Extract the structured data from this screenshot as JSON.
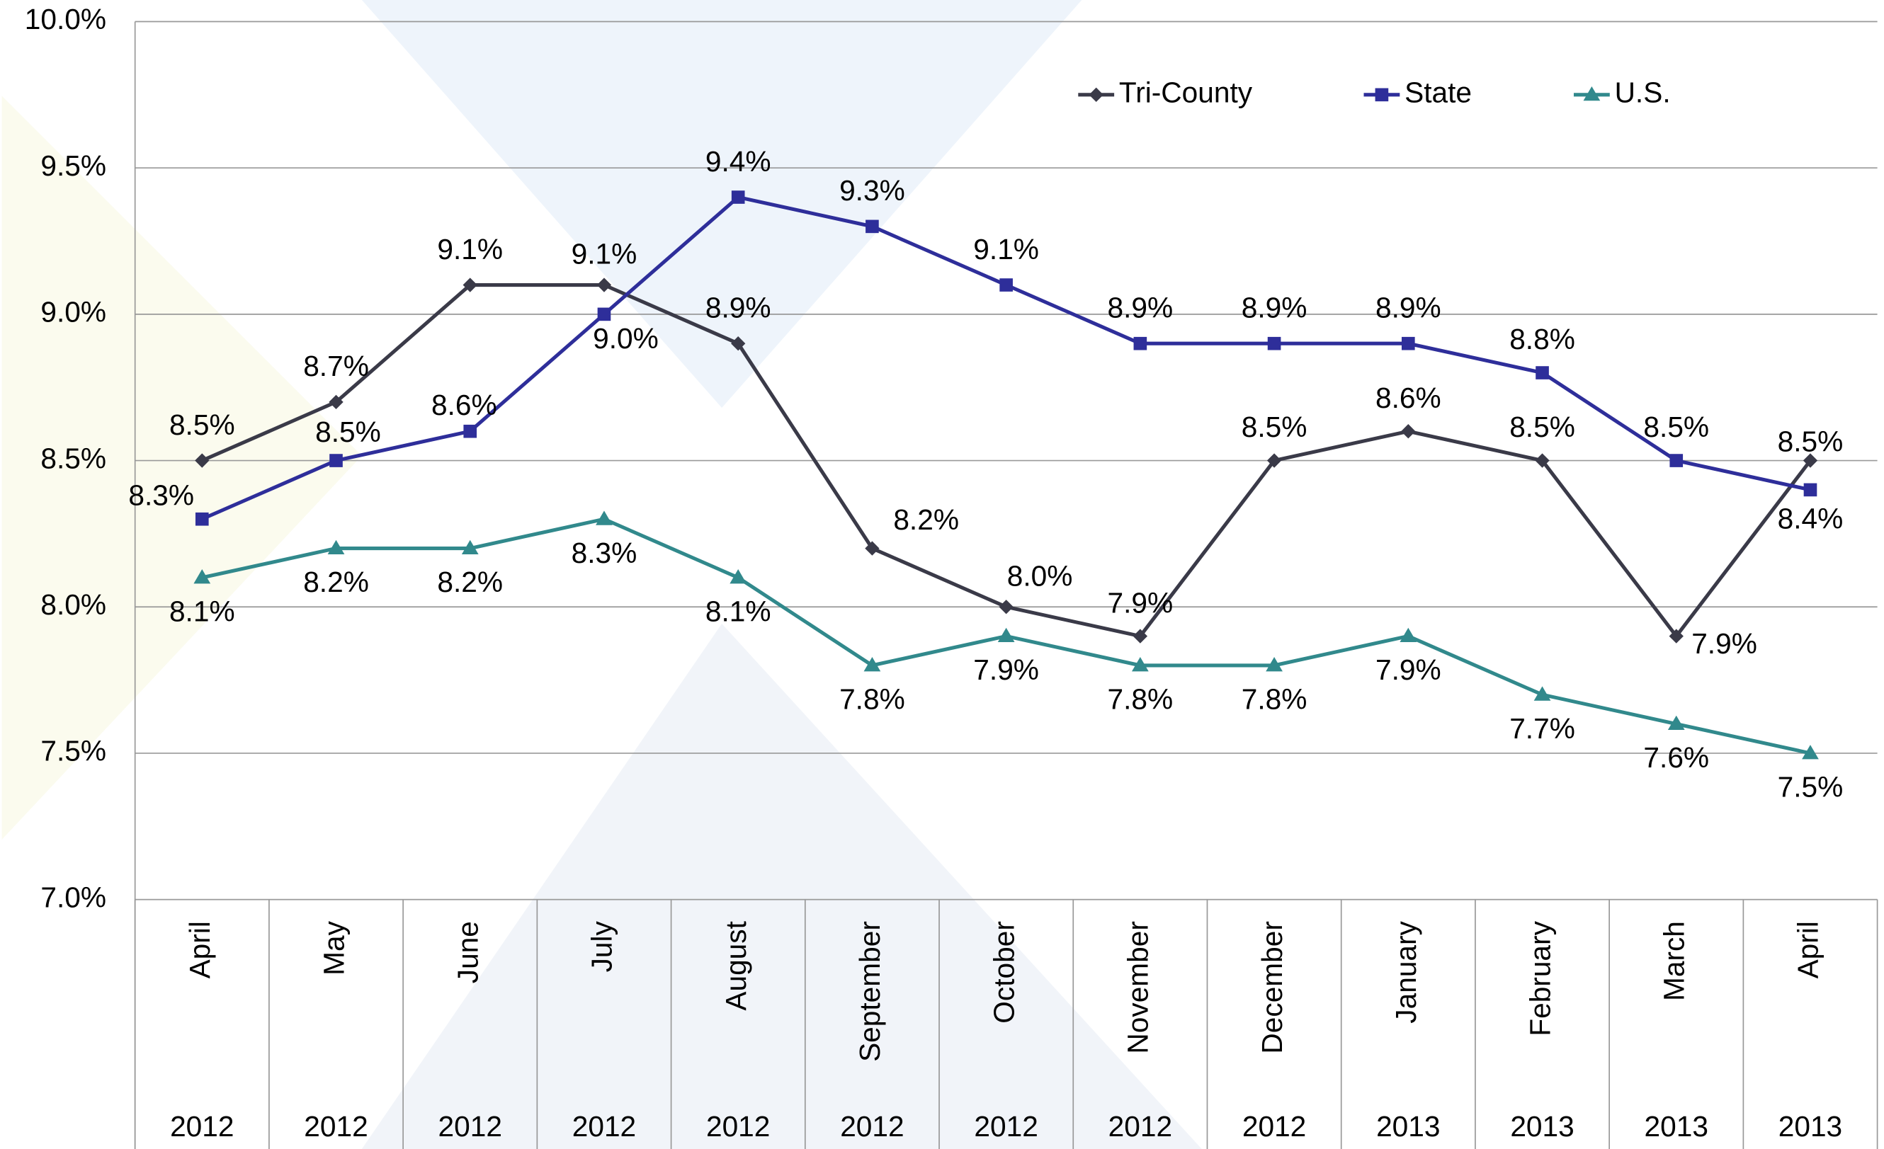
{
  "chart_data": {
    "type": "line",
    "categories": [
      "April",
      "May",
      "June",
      "July",
      "August",
      "September",
      "October",
      "November",
      "December",
      "January",
      "February",
      "March",
      "April"
    ],
    "years": [
      "2012",
      "2012",
      "2012",
      "2012",
      "2012",
      "2012",
      "2012",
      "2012",
      "2012",
      "2013",
      "2013",
      "2013",
      "2013"
    ],
    "ylim": [
      7,
      10
    ],
    "yticks": [
      {
        "value": 7,
        "label": "7.0%"
      },
      {
        "value": 7.5,
        "label": "7.5%"
      },
      {
        "value": 8,
        "label": "8.0%"
      },
      {
        "value": 8.5,
        "label": "8.5%"
      },
      {
        "value": 9,
        "label": "9.0%"
      },
      {
        "value": 9.5,
        "label": "9.5%"
      },
      {
        "value": 10,
        "label": "10.0%"
      }
    ],
    "grid": true,
    "legend": "top",
    "series": [
      {
        "name": "Tri-County",
        "color": "#3a3a48",
        "marker": "diamond",
        "values": [
          8.5,
          8.7,
          9.1,
          9.1,
          8.9,
          8.2,
          8.0,
          7.9,
          8.5,
          8.6,
          8.5,
          7.9,
          8.5
        ],
        "value_labels": [
          "8.5%",
          "8.7%",
          "9.1%",
          "9.1%",
          "8.9%",
          "8.2%",
          "8.0%",
          "7.9%",
          "8.5%",
          "8.6%",
          "8.5%",
          "7.9%",
          "8.5%"
        ]
      },
      {
        "name": "State",
        "color": "#2e2e9a",
        "marker": "square",
        "values": [
          8.3,
          8.5,
          8.6,
          9.0,
          9.4,
          9.3,
          9.1,
          8.9,
          8.9,
          8.9,
          8.8,
          8.5,
          8.4
        ],
        "value_labels": [
          "8.3%",
          "8.5%",
          "8.6%",
          "9.0%",
          "9.4%",
          "9.3%",
          "9.1%",
          "8.9%",
          "8.9%",
          "8.9%",
          "8.8%",
          "8.5%",
          "8.4%"
        ]
      },
      {
        "name": "U.S.",
        "color": "#31898c",
        "marker": "triangle",
        "values": [
          8.1,
          8.2,
          8.2,
          8.3,
          8.1,
          7.8,
          7.9,
          7.8,
          7.8,
          7.9,
          7.7,
          7.6,
          7.5
        ],
        "value_labels": [
          "8.1%",
          "8.2%",
          "8.2%",
          "8.3%",
          "8.1%",
          "7.8%",
          "7.9%",
          "7.8%",
          "7.8%",
          "7.9%",
          "7.7%",
          "7.6%",
          "7.5%"
        ]
      }
    ]
  }
}
